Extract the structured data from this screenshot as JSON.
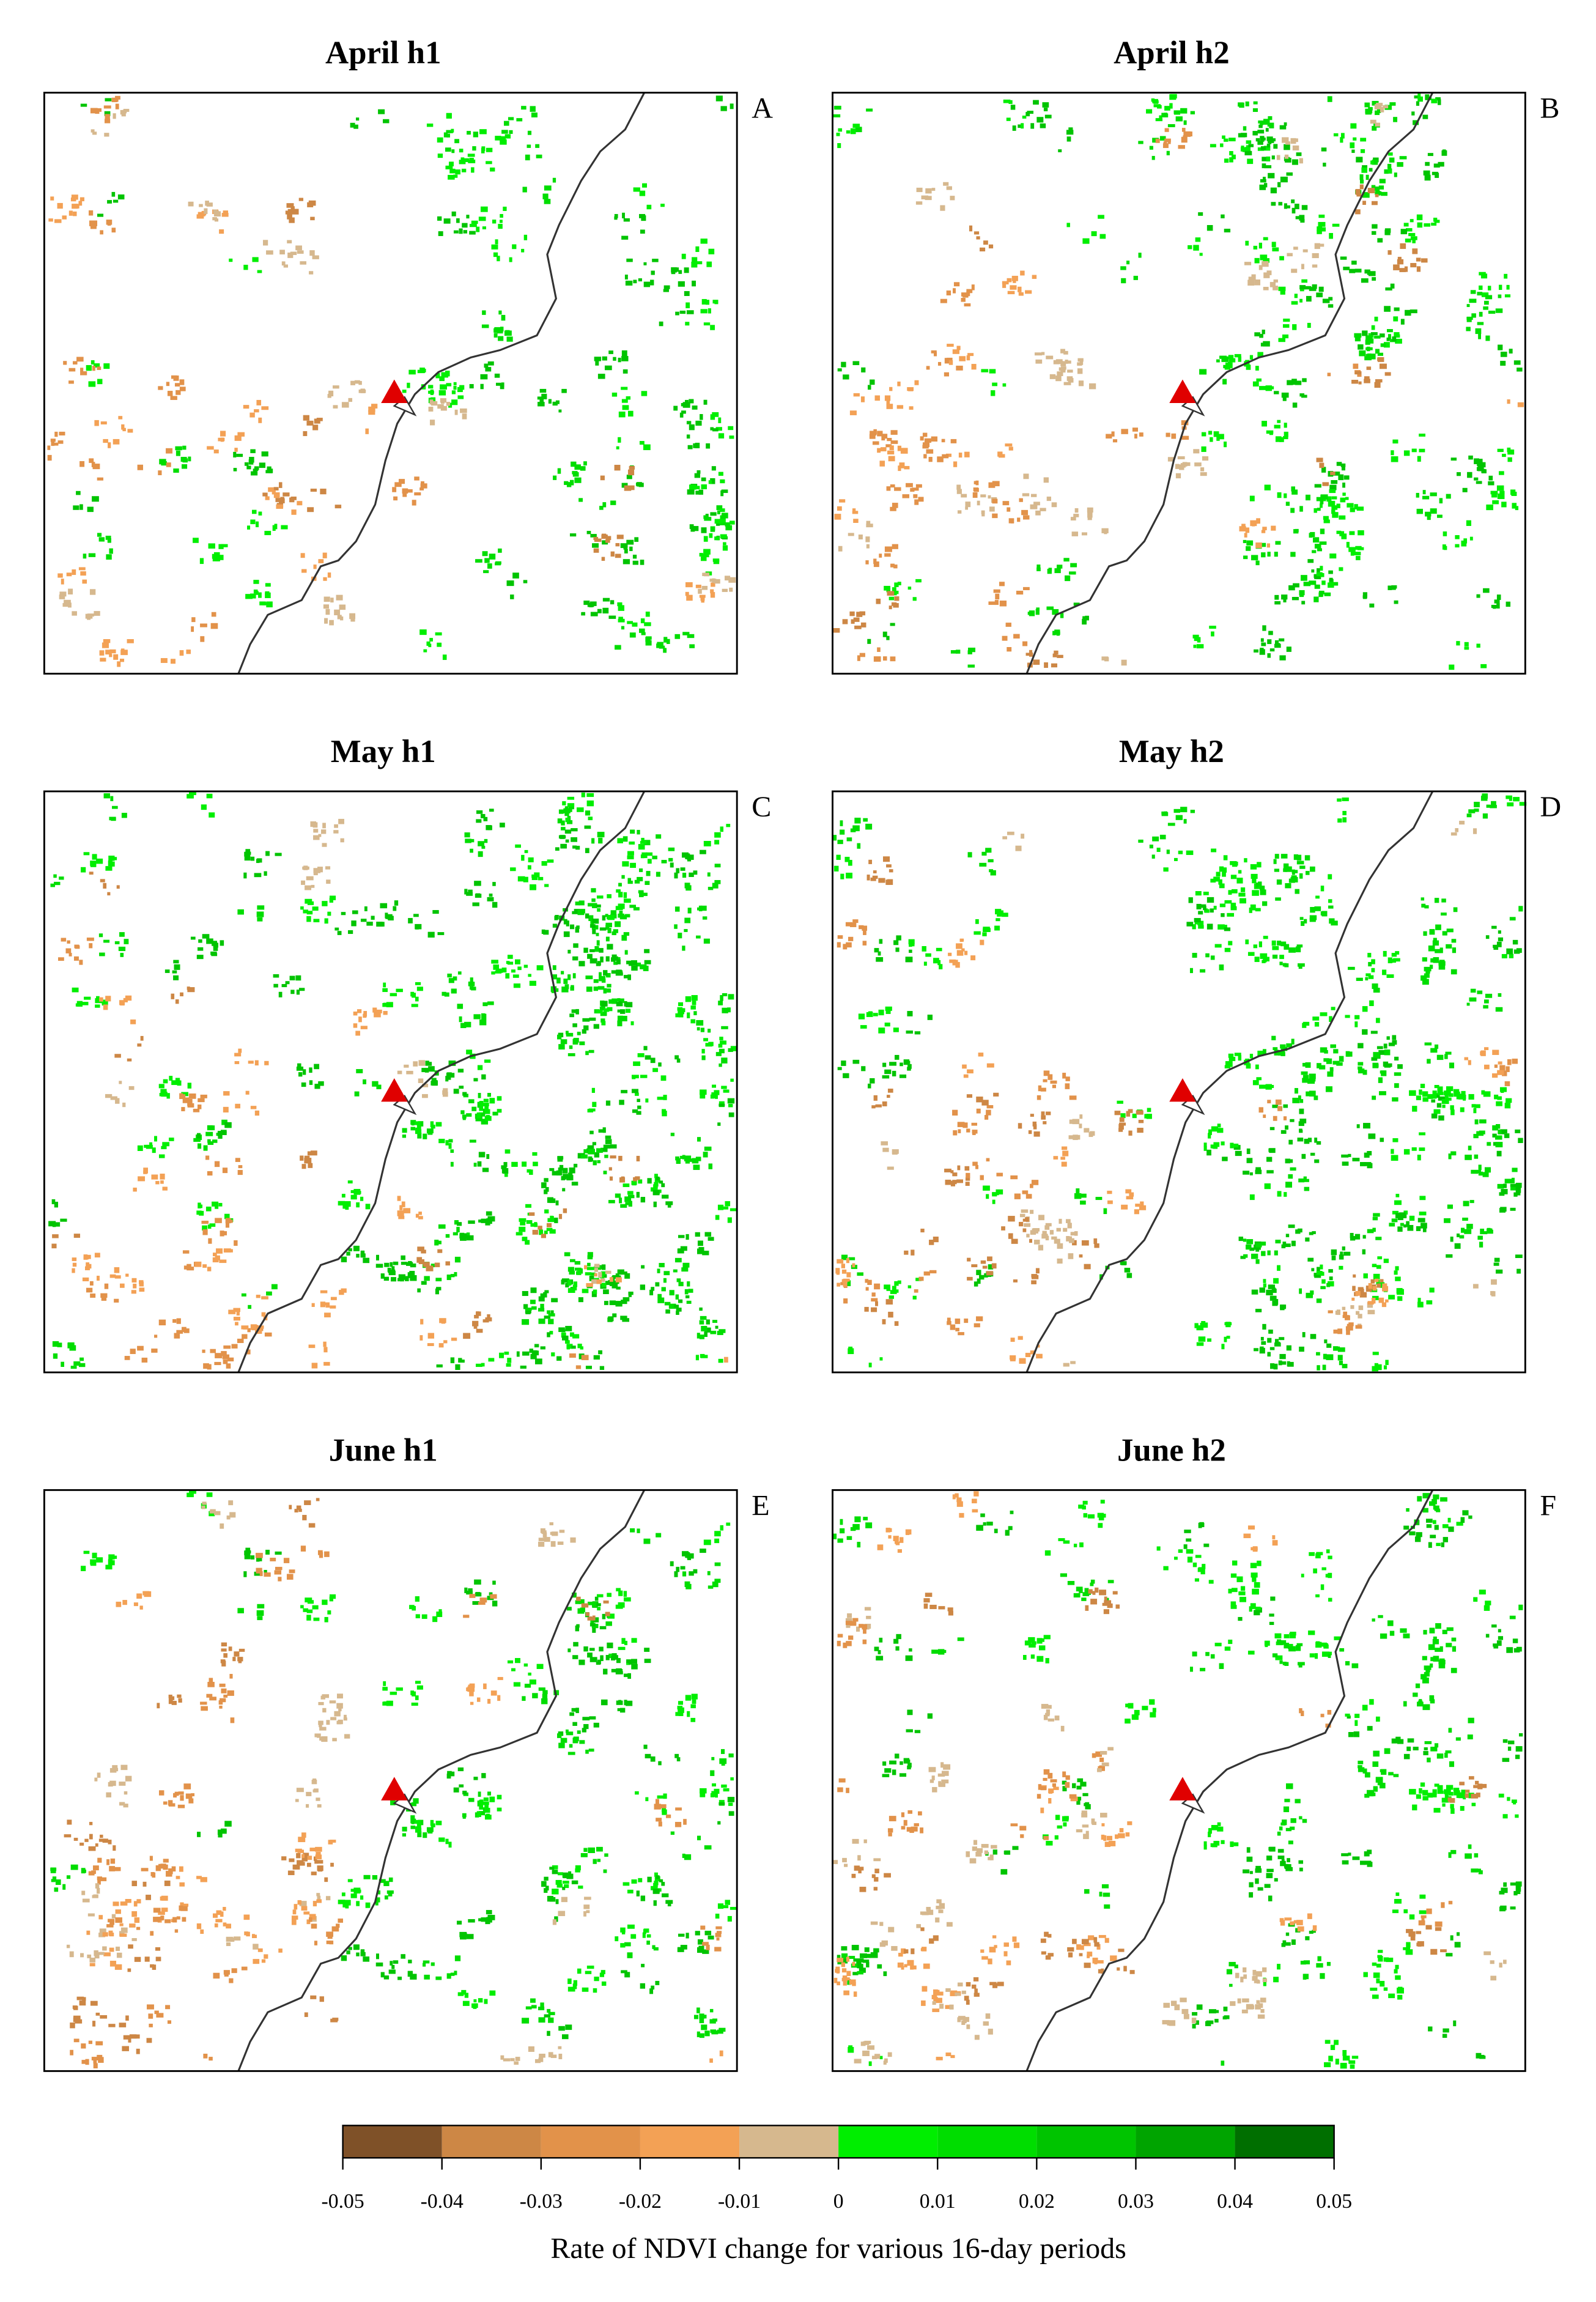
{
  "panels": [
    {
      "title": "April h1",
      "letter": "A"
    },
    {
      "title": "April h2",
      "letter": "B"
    },
    {
      "title": "May h1",
      "letter": "C"
    },
    {
      "title": "May h2",
      "letter": "D"
    },
    {
      "title": "June h1",
      "letter": "E"
    },
    {
      "title": "June h2",
      "letter": "F"
    }
  ],
  "colorbar": {
    "bins": [
      -0.05,
      -0.04,
      -0.03,
      -0.02,
      -0.01,
      0,
      0.01,
      0.02,
      0.03,
      0.04,
      0.05
    ],
    "colors": [
      "#7f5128",
      "#cd8745",
      "#e2924a",
      "#f3a155",
      "#d6b88e",
      "#00ee00",
      "#00dd00",
      "#00c400",
      "#00a400",
      "#006f00"
    ],
    "label": "Rate of NDVI change for various 16-day periods"
  }
}
